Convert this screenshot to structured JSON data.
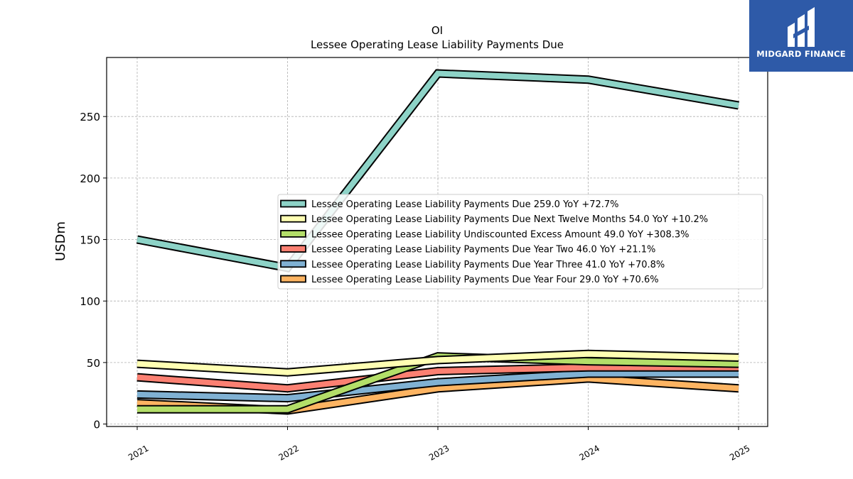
{
  "chart_data": {
    "type": "line",
    "title": "OI",
    "subtitle": "Lessee Operating Lease Liability Payments Due",
    "xlabel": "",
    "ylabel": "USDm",
    "categories": [
      "2021",
      "2022",
      "2023",
      "2024",
      "2025"
    ],
    "ylim": [
      -2,
      298
    ],
    "yticks": [
      0,
      50,
      100,
      150,
      200,
      250
    ],
    "grid": true,
    "legend_position": "center-right",
    "series": [
      {
        "name": "Lessee Operating Lease Liability Payments Due",
        "legend": "Lessee Operating Lease Liability Payments Due  259.0 YoY +72.7%",
        "color": "#8dd3c7",
        "values": [
          150.0,
          127.0,
          285.0,
          280.0,
          259.0
        ]
      },
      {
        "name": "Lessee Operating Lease Liability Payments Due Next Twelve Months",
        "legend": "Lessee Operating Lease Liability Payments Due Next Twelve Months  54.0 YoY +10.2%",
        "color": "#ffffb3",
        "values": [
          49.0,
          42.0,
          52.0,
          57.0,
          54.0
        ]
      },
      {
        "name": "Lessee Operating Lease Liability Undiscounted Excess Amount",
        "legend": "Lessee Operating Lease Liability Undiscounted Excess Amount  49.0 YoY +308.3%",
        "color": "#b3de69",
        "values": [
          12.0,
          12.0,
          55.0,
          51.0,
          49.0
        ]
      },
      {
        "name": "Lessee Operating Lease Liability Payments Due Year Two",
        "legend": "Lessee Operating Lease Liability Payments Due Year Two  46.0 YoY +21.1%",
        "color": "#fb8072",
        "values": [
          38.0,
          29.0,
          43.0,
          46.0,
          46.0
        ]
      },
      {
        "name": "Lessee Operating Lease Liability Payments Due Year Three",
        "legend": "Lessee Operating Lease Liability Payments Due Year Three  41.0 YoY +70.8%",
        "color": "#80b1d3",
        "values": [
          24.0,
          21.0,
          34.0,
          41.0,
          41.0
        ]
      },
      {
        "name": "Lessee Operating Lease Liability Payments Due Year Four",
        "legend": "Lessee Operating Lease Liability Payments Due Year Four  29.0 YoY +70.6%",
        "color": "#fdb462",
        "values": [
          17.0,
          11.0,
          29.0,
          37.0,
          29.0
        ]
      }
    ]
  },
  "logo": {
    "text": "MIDGARD FINANCE",
    "color": "#2e5aa8"
  }
}
